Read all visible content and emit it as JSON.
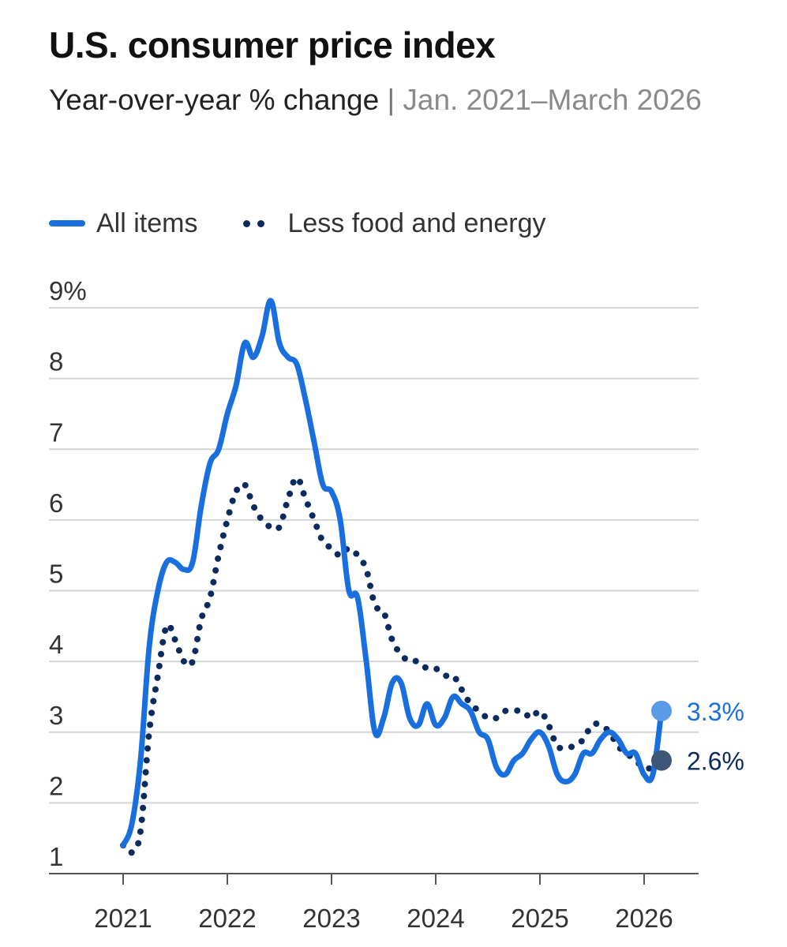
{
  "header": {
    "title": "U.S. consumer price index",
    "subtitle_main": "Year-over-year % change",
    "subtitle_sep": "|",
    "subtitle_range": "Jan. 2021–March 2026"
  },
  "colors": {
    "all_items": "#1a6fde",
    "core": "#0b2b5e",
    "grid": "#d4d4d4",
    "axis": "#555555",
    "end_dot_all": "#5a9be8",
    "end_dot_core": "#3d5675"
  },
  "chart_data": {
    "type": "line",
    "title": "U.S. consumer price index",
    "subtitle": "Year-over-year % change | Jan. 2021–March 2026",
    "y_unit_label": "9%",
    "ylim": [
      1,
      9
    ],
    "y_ticks": [
      1,
      2,
      3,
      4,
      5,
      6,
      7,
      8,
      9
    ],
    "y_tick_labels": [
      "1",
      "2",
      "3",
      "4",
      "5",
      "6",
      "7",
      "8",
      "9%"
    ],
    "x_ticks": [
      "2021",
      "2022",
      "2023",
      "2024",
      "2025",
      "2026"
    ],
    "x_range": [
      "2021-01",
      "2026-03"
    ],
    "grid": true,
    "legend_position": "top-left",
    "months": [
      "2021-01",
      "2021-02",
      "2021-03",
      "2021-04",
      "2021-05",
      "2021-06",
      "2021-07",
      "2021-08",
      "2021-09",
      "2021-10",
      "2021-11",
      "2021-12",
      "2022-01",
      "2022-02",
      "2022-03",
      "2022-04",
      "2022-05",
      "2022-06",
      "2022-07",
      "2022-08",
      "2022-09",
      "2022-10",
      "2022-11",
      "2022-12",
      "2023-01",
      "2023-02",
      "2023-03",
      "2023-04",
      "2023-05",
      "2023-06",
      "2023-07",
      "2023-08",
      "2023-09",
      "2023-10",
      "2023-11",
      "2023-12",
      "2024-01",
      "2024-02",
      "2024-03",
      "2024-04",
      "2024-05",
      "2024-06",
      "2024-07",
      "2024-08",
      "2024-09",
      "2024-10",
      "2024-11",
      "2024-12",
      "2025-01",
      "2025-02",
      "2025-03",
      "2025-04",
      "2025-05",
      "2025-06",
      "2025-07",
      "2025-08",
      "2025-09",
      "2025-10",
      "2025-11",
      "2025-12",
      "2026-01",
      "2026-02",
      "2026-03"
    ],
    "series": [
      {
        "name": "All items",
        "style": "solid",
        "values": [
          1.4,
          1.7,
          2.6,
          4.2,
          5.0,
          5.4,
          5.4,
          5.3,
          5.4,
          6.2,
          6.8,
          7.0,
          7.5,
          7.9,
          8.5,
          8.3,
          8.6,
          9.1,
          8.5,
          8.3,
          8.2,
          7.7,
          7.1,
          6.5,
          6.4,
          6.0,
          5.0,
          4.9,
          4.0,
          3.0,
          3.2,
          3.7,
          3.7,
          3.2,
          3.1,
          3.4,
          3.1,
          3.2,
          3.5,
          3.4,
          3.3,
          3.0,
          2.9,
          2.5,
          2.4,
          2.6,
          2.7,
          2.9,
          3.0,
          2.8,
          2.4,
          2.3,
          2.4,
          2.7,
          2.7,
          2.9,
          3.0,
          2.9,
          2.7,
          2.7,
          2.4,
          2.4,
          3.3
        ],
        "end_label": "3.3%"
      },
      {
        "name": "Less food and energy",
        "style": "dotted",
        "values": [
          1.4,
          1.3,
          1.6,
          3.0,
          3.8,
          4.5,
          4.3,
          4.0,
          4.0,
          4.6,
          4.9,
          5.5,
          6.0,
          6.4,
          6.5,
          6.2,
          6.0,
          5.9,
          5.9,
          6.3,
          6.6,
          6.3,
          6.0,
          5.7,
          5.6,
          5.5,
          5.6,
          5.5,
          5.3,
          4.8,
          4.7,
          4.3,
          4.1,
          4.0,
          4.0,
          3.9,
          3.9,
          3.8,
          3.8,
          3.6,
          3.4,
          3.3,
          3.2,
          3.2,
          3.3,
          3.3,
          3.3,
          3.2,
          3.3,
          3.1,
          2.8,
          2.8,
          2.8,
          2.9,
          3.1,
          3.1,
          3.0,
          2.8,
          2.7,
          2.6,
          2.5,
          2.5,
          2.6
        ],
        "end_label": "2.6%"
      }
    ]
  }
}
